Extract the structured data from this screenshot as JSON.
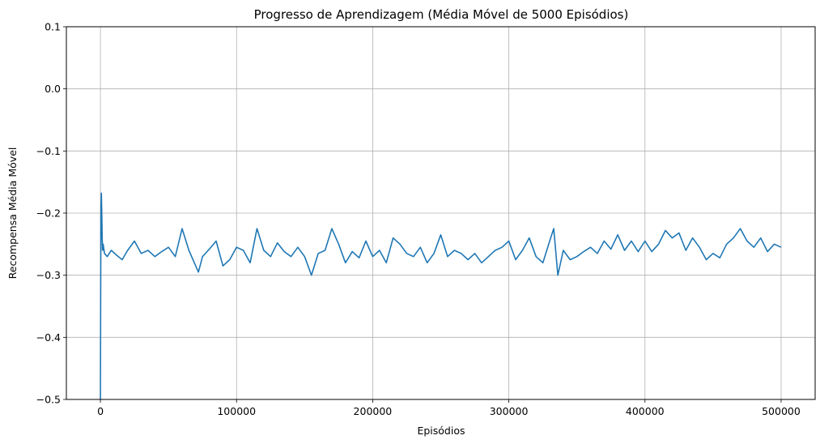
{
  "chart_data": {
    "type": "line",
    "title": "Progresso de Aprendizagem (Média Móvel de 5000 Episódios)",
    "xlabel": "Episódios",
    "ylabel": "Recompensa Média Móvel",
    "xlim": [
      -25000,
      525000
    ],
    "ylim": [
      -0.5,
      0.1
    ],
    "xticks": [
      0,
      100000,
      200000,
      300000,
      400000,
      500000
    ],
    "xtick_labels": [
      "0",
      "100000",
      "200000",
      "300000",
      "400000",
      "500000"
    ],
    "yticks": [
      -0.5,
      -0.4,
      -0.3,
      -0.2,
      -0.1,
      0.0,
      0.1
    ],
    "ytick_labels": [
      "−0.5",
      "−0.4",
      "−0.3",
      "−0.2",
      "−0.1",
      "0.0",
      "0.1"
    ],
    "grid": true,
    "series": [
      {
        "color": "#1f77b4",
        "x": [
          0,
          200,
          400,
          700,
          1000,
          1300,
          1600,
          2000,
          3000,
          5000,
          8000,
          12000,
          16000,
          20000,
          25000,
          30000,
          35000,
          40000,
          45000,
          50000,
          55000,
          60000,
          65000,
          70000,
          72000,
          75000,
          80000,
          85000,
          90000,
          95000,
          100000,
          105000,
          110000,
          115000,
          120000,
          125000,
          130000,
          135000,
          140000,
          145000,
          150000,
          155000,
          160000,
          165000,
          170000,
          175000,
          180000,
          185000,
          190000,
          195000,
          200000,
          205000,
          210000,
          215000,
          220000,
          225000,
          230000,
          235000,
          240000,
          245000,
          250000,
          255000,
          260000,
          265000,
          270000,
          275000,
          280000,
          285000,
          290000,
          295000,
          300000,
          305000,
          310000,
          315000,
          320000,
          325000,
          330000,
          333000,
          336000,
          340000,
          345000,
          350000,
          355000,
          360000,
          365000,
          370000,
          375000,
          380000,
          385000,
          390000,
          395000,
          400000,
          405000,
          410000,
          415000,
          420000,
          425000,
          430000,
          435000,
          440000,
          445000,
          450000,
          455000,
          460000,
          465000,
          470000,
          475000,
          480000,
          485000,
          490000,
          495000,
          500000
        ],
        "y": [
          -0.5,
          -0.33,
          -0.19,
          -0.168,
          -0.2,
          -0.24,
          -0.26,
          -0.25,
          -0.265,
          -0.27,
          -0.26,
          -0.268,
          -0.275,
          -0.26,
          -0.245,
          -0.265,
          -0.26,
          -0.27,
          -0.262,
          -0.255,
          -0.27,
          -0.225,
          -0.26,
          -0.285,
          -0.295,
          -0.27,
          -0.258,
          -0.245,
          -0.285,
          -0.275,
          -0.255,
          -0.26,
          -0.28,
          -0.225,
          -0.26,
          -0.27,
          -0.248,
          -0.262,
          -0.27,
          -0.255,
          -0.27,
          -0.3,
          -0.265,
          -0.26,
          -0.225,
          -0.25,
          -0.28,
          -0.262,
          -0.272,
          -0.245,
          -0.27,
          -0.26,
          -0.28,
          -0.24,
          -0.25,
          -0.265,
          -0.27,
          -0.255,
          -0.28,
          -0.265,
          -0.235,
          -0.27,
          -0.26,
          -0.265,
          -0.275,
          -0.265,
          -0.28,
          -0.27,
          -0.26,
          -0.255,
          -0.245,
          -0.275,
          -0.26,
          -0.24,
          -0.27,
          -0.28,
          -0.245,
          -0.225,
          -0.3,
          -0.26,
          -0.275,
          -0.27,
          -0.262,
          -0.255,
          -0.265,
          -0.245,
          -0.258,
          -0.235,
          -0.26,
          -0.245,
          -0.262,
          -0.245,
          -0.262,
          -0.25,
          -0.228,
          -0.24,
          -0.232,
          -0.26,
          -0.24,
          -0.255,
          -0.275,
          -0.265,
          -0.272,
          -0.25,
          -0.24,
          -0.225,
          -0.245,
          -0.255,
          -0.24,
          -0.262,
          -0.25,
          -0.255
        ]
      }
    ]
  }
}
